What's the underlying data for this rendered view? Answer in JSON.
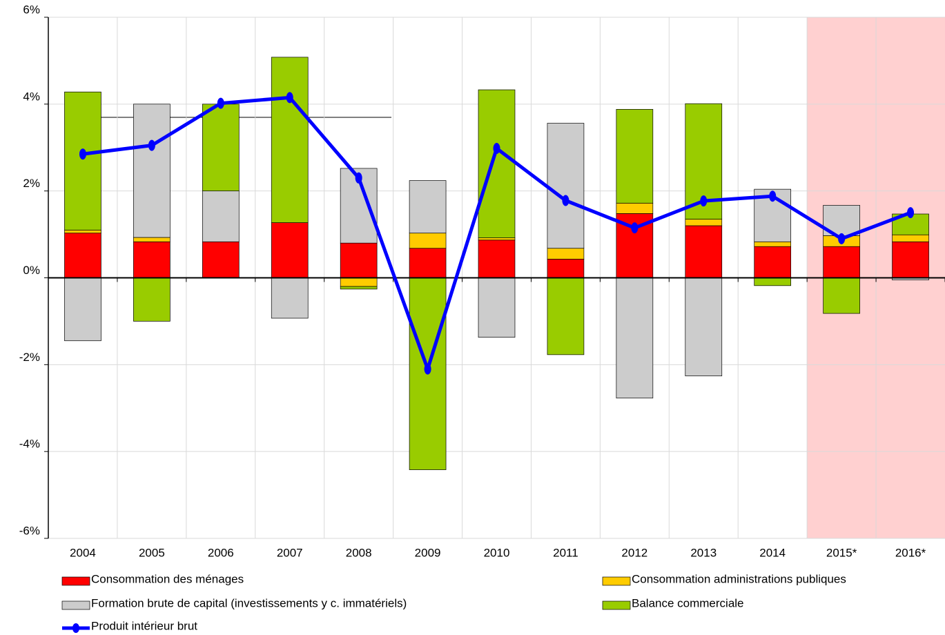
{
  "chart_data": {
    "type": "bar",
    "categories": [
      "2004",
      "2005",
      "2006",
      "2007",
      "2008",
      "2009",
      "2010",
      "2011",
      "2012",
      "2013",
      "2014",
      "2015*",
      "2016*"
    ],
    "series": [
      {
        "name": "Consommation des ménages",
        "color": "#ff0000",
        "values": [
          1.03,
          0.83,
          0.83,
          1.27,
          0.8,
          0.68,
          0.87,
          0.43,
          1.48,
          1.2,
          0.72,
          0.72,
          0.83
        ]
      },
      {
        "name": "Consommation administrations publiques",
        "color": "#ffcc00",
        "values": [
          0.07,
          0.1,
          0,
          0,
          -0.2,
          0.35,
          0.05,
          0.25,
          0.24,
          0.15,
          0.11,
          0.25,
          0.16
        ]
      },
      {
        "name": "Formation brute de capital (investissements y c. immatériels)",
        "color": "#cccccc",
        "values": [
          -1.45,
          3.07,
          1.17,
          -0.93,
          1.72,
          1.21,
          -1.37,
          2.88,
          -2.77,
          -2.26,
          1.21,
          0.7,
          -0.05
        ]
      },
      {
        "name": "Balance commerciale",
        "color": "#99cc00",
        "values": [
          3.18,
          -1.0,
          2.0,
          3.81,
          -0.06,
          -4.42,
          3.41,
          -1.77,
          2.16,
          2.66,
          -0.18,
          -0.82,
          0.48
        ]
      },
      {
        "name": "Produit intérieur brut",
        "type": "line",
        "color": "#0000ff",
        "values": [
          2.85,
          3.05,
          4.02,
          4.15,
          2.3,
          -2.1,
          2.98,
          1.78,
          1.15,
          1.77,
          1.88,
          0.9,
          1.5
        ]
      }
    ],
    "ylim": [
      -6,
      6
    ],
    "yticks": [
      {
        "value": -6,
        "label": "-6%"
      },
      {
        "value": -4,
        "label": "-4%"
      },
      {
        "value": -2,
        "label": "-2%"
      },
      {
        "value": 0,
        "label": "0%"
      },
      {
        "value": 2,
        "label": "2%"
      },
      {
        "value": 4,
        "label": "4%"
      },
      {
        "value": 6,
        "label": "6%"
      }
    ],
    "grid": true,
    "stacked": true,
    "shade_start_index": 11,
    "shade_color": "#ffd0d0",
    "legend": "bottom"
  }
}
